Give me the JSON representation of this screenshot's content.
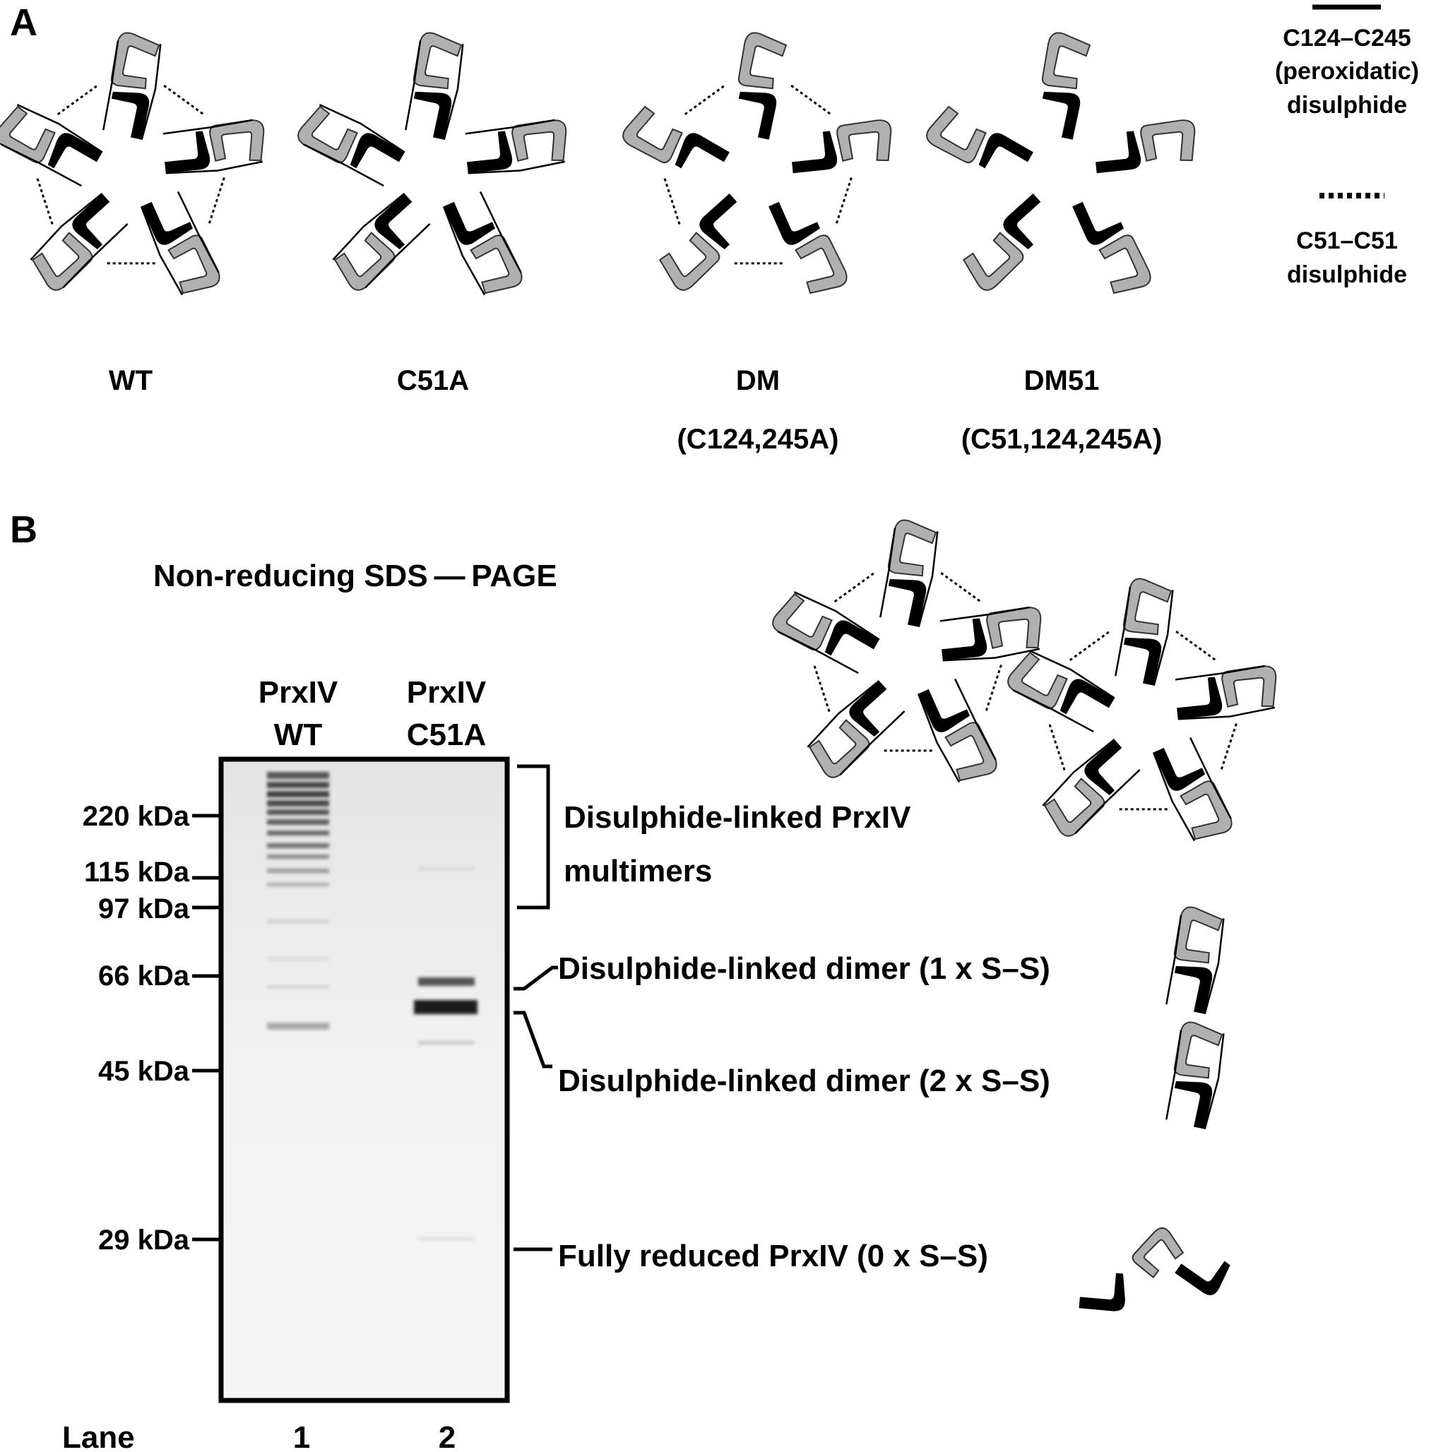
{
  "panel_a": {
    "label": "A",
    "variants": [
      {
        "name": "WT",
        "mutation": ""
      },
      {
        "name": "C51A",
        "mutation": ""
      },
      {
        "name": "DM",
        "mutation": "(C124,245A)"
      },
      {
        "name": "DM51",
        "mutation": "(C51,124,245A)"
      }
    ],
    "legend": {
      "solid_label_lines": [
        "C124–C245",
        "(peroxidatic)",
        "disulphide"
      ],
      "dotted_label_lines": [
        "C51–C51",
        "disulphide"
      ]
    }
  },
  "panel_b": {
    "label": "B",
    "title": "Non-reducing SDS — PAGE",
    "lanes": [
      {
        "header_lines": [
          "PrxIV",
          "WT"
        ],
        "number": "1"
      },
      {
        "header_lines": [
          "PrxIV",
          "C51A"
        ],
        "number": "2"
      }
    ],
    "lane_axis_label": "Lane",
    "markers": [
      "220 kDa",
      "115 kDa",
      "97 kDa",
      "66 kDa",
      "45 kDa",
      "29 kDa"
    ],
    "annotations": {
      "multimers_lines": [
        "Disulphide-linked PrxIV",
        "multimers"
      ],
      "dimer1": "Disulphide-linked dimer (1 x S–S)",
      "dimer2": "Disulphide-linked dimer (2 x S–S)",
      "reduced": "Fully reduced PrxIV (0 x S–S)"
    }
  },
  "colors": {
    "black_subunit": "#000000",
    "grey_subunit": "#b0b0b0",
    "gel_background": "#efefef"
  }
}
